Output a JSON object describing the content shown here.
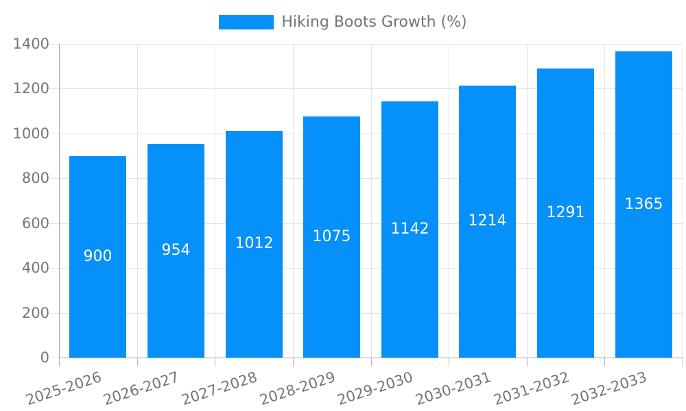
{
  "legend": {
    "label": "Hiking Boots Growth (%)"
  },
  "colors": {
    "bar": "#0690fa",
    "axis_label": "#757575",
    "grid": "#e3e3e3",
    "axis_line": "#a6a6a6",
    "value_label": "#ffffff",
    "background": "#ffffff"
  },
  "chart_data": {
    "type": "bar",
    "title": "Hiking Boots Growth (%)",
    "categories": [
      "2025-2026",
      "2026-2027",
      "2027-2028",
      "2028-2029",
      "2029-2030",
      "2030-2031",
      "2031-2032",
      "2032-2033"
    ],
    "series": [
      {
        "name": "Hiking Boots Growth (%)",
        "values": [
          900,
          954,
          1012,
          1075,
          1142,
          1214,
          1291,
          1365
        ]
      }
    ],
    "xlabel": "",
    "ylabel": "",
    "ylim": [
      0,
      1400
    ],
    "yticks": [
      0,
      200,
      400,
      600,
      800,
      1000,
      1200,
      1400
    ],
    "grid": "on",
    "legend_position": "top-center",
    "value_label_style": "white, centered inside bar",
    "xtick_rotation_deg": -18
  }
}
